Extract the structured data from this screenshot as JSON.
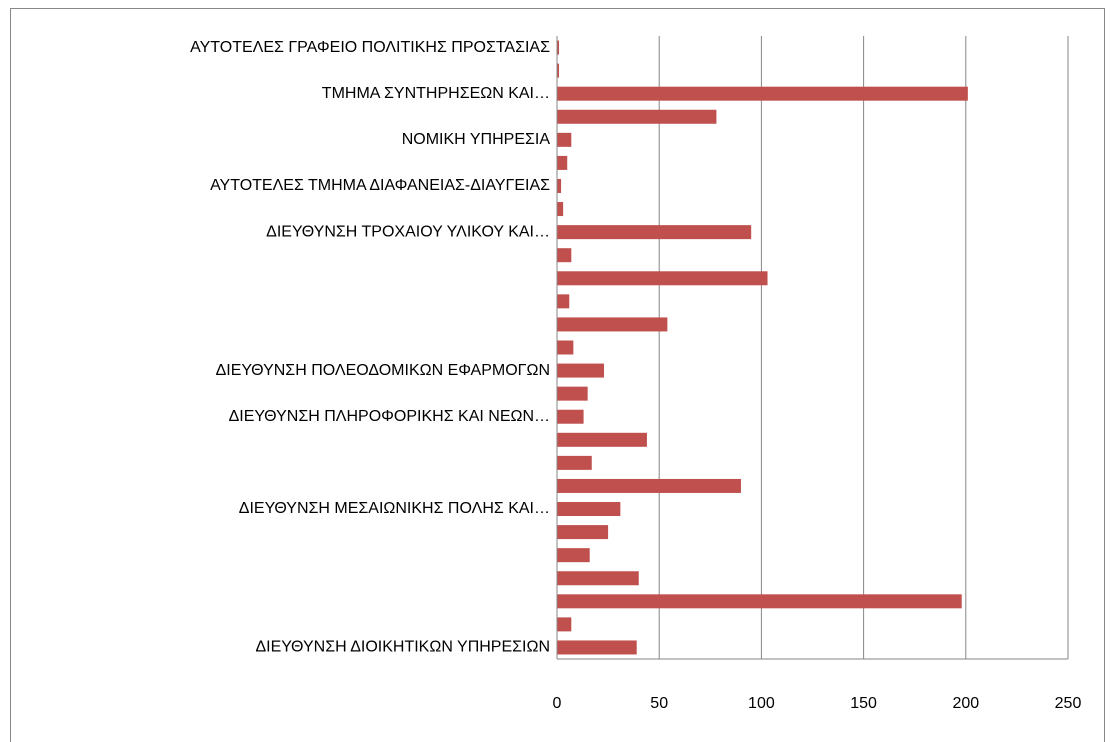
{
  "chart_data": {
    "type": "barh",
    "categories": [
      "ΑΥΤΟΤΕΛΕΣ ΓΡΑΦΕΙΟ ΠΟΛΙΤΙΚΗΣ ΠΡΟΣΤΑΣΙΑΣ",
      null,
      "ΤΜΗΜΑ ΣΥΝΤΗΡΗΣΕΩΝ ΚΑΙ…",
      null,
      "ΝΟΜΙΚΗ ΥΠΗΡΕΣΙΑ",
      null,
      "ΑΥΤΟΤΕΛΕΣ ΤΜΗΜΑ ΔΙΑΦΑΝΕΙΑΣ-ΔΙΑΥΓΕΙΑΣ",
      null,
      "ΔΙΕΥΘΥΝΣΗ ΤΡΟΧΑΙΟΥ ΥΛΙΚΟΥ ΚΑΙ…",
      null,
      null,
      null,
      null,
      null,
      "ΔΙΕΥΘΥΝΣΗ ΠΟΛΕΟΔΟΜΙΚΩΝ ΕΦΑΡΜΟΓΩΝ",
      null,
      "ΔΙΕΥΘΥΝΣΗ ΠΛΗΡΟΦΟΡΙΚΗΣ ΚΑΙ ΝΕΩΝ…",
      null,
      null,
      null,
      "ΔΙΕΥΘΥΝΣΗ ΜΕΣΑΙΩΝΙΚΗΣ ΠΟΛΗΣ ΚΑΙ…",
      null,
      null,
      null,
      null,
      null,
      "ΔΙΕΥΘΥΝΣΗ ΔΙΟΙΚΗΤΙΚΩΝ ΥΠΗΡΕΣΙΩΝ"
    ],
    "values": [
      1,
      1,
      201,
      78,
      7,
      5,
      2,
      3,
      95,
      7,
      103,
      6,
      54,
      8,
      23,
      15,
      13,
      44,
      17,
      90,
      31,
      25,
      16,
      40,
      198,
      7,
      39
    ],
    "color": "#c0504d",
    "xlim": [
      0,
      250
    ],
    "xticks": [
      0,
      50,
      100,
      150,
      200,
      250
    ],
    "grid": true
  }
}
